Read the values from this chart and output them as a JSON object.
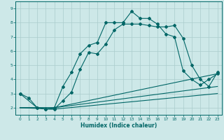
{
  "xlabel": "Humidex (Indice chaleur)",
  "bg_color": "#cde8e8",
  "grid_color": "#aacccc",
  "line_color": "#006666",
  "xlim": [
    -0.5,
    23.5
  ],
  "ylim": [
    1.5,
    9.5
  ],
  "xticks": [
    0,
    1,
    2,
    3,
    4,
    5,
    6,
    7,
    8,
    9,
    10,
    11,
    12,
    13,
    14,
    15,
    16,
    17,
    18,
    19,
    20,
    21,
    22,
    23
  ],
  "yticks": [
    2,
    3,
    4,
    5,
    6,
    7,
    8,
    9
  ],
  "line1_x": [
    0,
    1,
    2,
    3,
    4,
    5,
    6,
    7,
    8,
    9,
    10,
    11,
    12,
    13,
    14,
    15,
    16,
    17,
    18,
    19,
    20,
    21,
    22,
    23
  ],
  "line1_y": [
    3.0,
    2.7,
    2.0,
    1.9,
    2.0,
    3.5,
    4.5,
    5.8,
    6.4,
    6.6,
    8.0,
    8.0,
    8.0,
    8.8,
    8.3,
    8.3,
    7.9,
    7.2,
    7.0,
    4.6,
    4.0,
    3.6,
    4.0,
    4.4
  ],
  "line2_x": [
    0,
    2,
    3,
    4,
    5,
    6,
    7,
    8,
    9,
    10,
    11,
    12,
    13,
    14,
    15,
    16,
    17,
    18,
    19,
    20,
    21,
    22,
    23
  ],
  "line2_y": [
    3.0,
    2.0,
    1.9,
    1.9,
    2.5,
    3.1,
    4.7,
    5.9,
    5.8,
    6.5,
    7.5,
    7.9,
    7.9,
    7.9,
    7.8,
    7.7,
    7.7,
    7.8,
    6.9,
    5.0,
    4.0,
    3.5,
    4.5
  ],
  "line3_x": [
    0,
    4,
    23
  ],
  "line3_y": [
    2.0,
    2.0,
    4.4
  ],
  "line4_x": [
    0,
    4,
    23
  ],
  "line4_y": [
    2.0,
    2.0,
    3.5
  ],
  "line5_x": [
    0,
    4,
    23
  ],
  "line5_y": [
    2.0,
    1.9,
    3.0
  ],
  "label_fontsize": 4.2,
  "xlabel_fontsize": 5.5,
  "tick_fontsize": 4.2
}
